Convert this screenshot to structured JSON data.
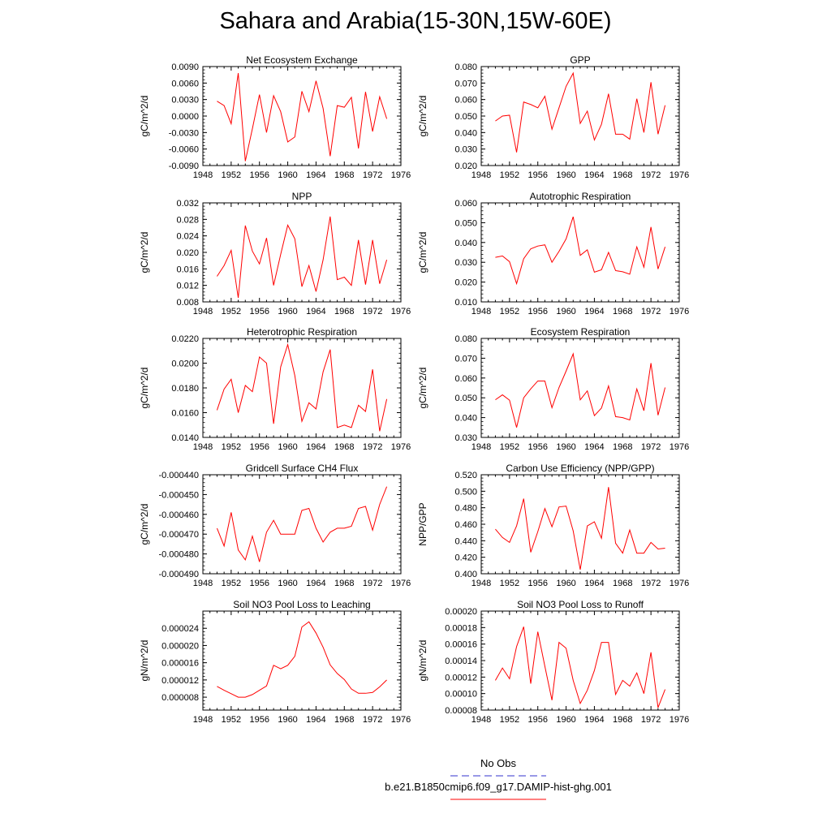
{
  "page_title": "Sahara and Arabia(15-30N,15W-60E)",
  "colors": {
    "model_line": "#ff0000",
    "obs_line": "#3333cc",
    "axes": "#000000"
  },
  "legend": {
    "items": [
      {
        "label": "No Obs",
        "style": "dashed",
        "color": "#3333cc"
      },
      {
        "label": "b.e21.B1850cmip6.f09_g17.DAMIP-hist-ghg.001",
        "style": "solid",
        "color": "#ff0000"
      }
    ]
  },
  "chart_data": [
    {
      "type": "line",
      "title": "Net Ecosystem Exchange",
      "ylabel": "gC/m^2/d",
      "xlim": [
        1948,
        1976
      ],
      "x_ticks": [
        "1948",
        "1952",
        "1956",
        "1960",
        "1964",
        "1968",
        "1972",
        "1976"
      ],
      "ylim": [
        -0.009,
        0.009
      ],
      "y_ticks": [
        "-0.0090",
        "-0.0060",
        "-0.0030",
        "0.0000",
        "0.0030",
        "0.0060",
        "0.0090"
      ],
      "x": [
        1950,
        1951,
        1952,
        1953,
        1954,
        1955,
        1956,
        1957,
        1958,
        1959,
        1960,
        1961,
        1962,
        1963,
        1964,
        1965,
        1966,
        1967,
        1968,
        1969,
        1970,
        1971,
        1972,
        1973,
        1974
      ],
      "series": [
        {
          "values": [
            0.0027,
            0.0019,
            -0.0014,
            0.0078,
            -0.0082,
            -0.0023,
            0.0039,
            -0.003,
            0.0037,
            0.0008,
            -0.0047,
            -0.0038,
            0.0045,
            0.0008,
            0.0064,
            0.0014,
            -0.0073,
            0.0019,
            0.0016,
            0.0034,
            -0.0059,
            0.0044,
            -0.0028,
            0.0035,
            -0.0005
          ]
        }
      ]
    },
    {
      "type": "line",
      "title": "GPP",
      "ylabel": "gC/m^2/d",
      "xlim": [
        1948,
        1976
      ],
      "x_ticks": [
        "1948",
        "1952",
        "1956",
        "1960",
        "1964",
        "1968",
        "1972",
        "1976"
      ],
      "ylim": [
        0.02,
        0.08
      ],
      "y_ticks": [
        "0.020",
        "0.030",
        "0.040",
        "0.050",
        "0.060",
        "0.070",
        "0.080"
      ],
      "x": [
        1950,
        1951,
        1952,
        1953,
        1954,
        1955,
        1956,
        1957,
        1958,
        1959,
        1960,
        1961,
        1962,
        1963,
        1964,
        1965,
        1966,
        1967,
        1968,
        1969,
        1970,
        1971,
        1972,
        1973,
        1974
      ],
      "series": [
        {
          "values": [
            0.047,
            0.05,
            0.0505,
            0.028,
            0.0585,
            0.057,
            0.055,
            0.062,
            0.042,
            0.055,
            0.068,
            0.076,
            0.0455,
            0.053,
            0.0355,
            0.045,
            0.0635,
            0.039,
            0.039,
            0.036,
            0.0605,
            0.04,
            0.0705,
            0.039,
            0.0565
          ]
        }
      ]
    },
    {
      "type": "line",
      "title": "NPP",
      "ylabel": "gC/m^2/d",
      "xlim": [
        1948,
        1976
      ],
      "x_ticks": [
        "1948",
        "1952",
        "1956",
        "1960",
        "1964",
        "1968",
        "1972",
        "1976"
      ],
      "ylim": [
        0.008,
        0.032
      ],
      "y_ticks": [
        "0.008",
        "0.012",
        "0.016",
        "0.020",
        "0.024",
        "0.028",
        "0.032"
      ],
      "x": [
        1950,
        1951,
        1952,
        1953,
        1954,
        1955,
        1956,
        1957,
        1958,
        1959,
        1960,
        1961,
        1962,
        1963,
        1964,
        1965,
        1966,
        1967,
        1968,
        1969,
        1970,
        1971,
        1972,
        1973,
        1974
      ],
      "series": [
        {
          "values": [
            0.0142,
            0.0168,
            0.0205,
            0.009,
            0.0265,
            0.0203,
            0.0172,
            0.0235,
            0.012,
            0.0195,
            0.0266,
            0.0233,
            0.0117,
            0.0168,
            0.0105,
            0.0182,
            0.0287,
            0.0134,
            0.014,
            0.012,
            0.023,
            0.0122,
            0.023,
            0.0124,
            0.0182
          ]
        }
      ]
    },
    {
      "type": "line",
      "title": "Autotrophic Respiration",
      "ylabel": "gC/m^2/d",
      "xlim": [
        1948,
        1976
      ],
      "x_ticks": [
        "1948",
        "1952",
        "1956",
        "1960",
        "1964",
        "1968",
        "1972",
        "1976"
      ],
      "ylim": [
        0.01,
        0.06
      ],
      "y_ticks": [
        "0.010",
        "0.020",
        "0.030",
        "0.040",
        "0.050",
        "0.060"
      ],
      "x": [
        1950,
        1951,
        1952,
        1953,
        1954,
        1955,
        1956,
        1957,
        1958,
        1959,
        1960,
        1961,
        1962,
        1963,
        1964,
        1965,
        1966,
        1967,
        1968,
        1969,
        1970,
        1971,
        1972,
        1973,
        1974
      ],
      "series": [
        {
          "values": [
            0.0325,
            0.0332,
            0.0303,
            0.0192,
            0.0318,
            0.0368,
            0.0382,
            0.0388,
            0.03,
            0.0355,
            0.0418,
            0.053,
            0.0335,
            0.0363,
            0.025,
            0.0262,
            0.035,
            0.0258,
            0.0252,
            0.024,
            0.0378,
            0.0275,
            0.0478,
            0.0266,
            0.0378
          ]
        }
      ]
    },
    {
      "type": "line",
      "title": "Heterotrophic Respiration",
      "ylabel": "gC/m^2/d",
      "xlim": [
        1948,
        1976
      ],
      "x_ticks": [
        "1948",
        "1952",
        "1956",
        "1960",
        "1964",
        "1968",
        "1972",
        "1976"
      ],
      "ylim": [
        0.014,
        0.022
      ],
      "y_ticks": [
        "0.0140",
        "0.0160",
        "0.0180",
        "0.0200",
        "0.0220"
      ],
      "x": [
        1950,
        1951,
        1952,
        1953,
        1954,
        1955,
        1956,
        1957,
        1958,
        1959,
        1960,
        1961,
        1962,
        1963,
        1964,
        1965,
        1966,
        1967,
        1968,
        1969,
        1970,
        1971,
        1972,
        1973,
        1974
      ],
      "series": [
        {
          "values": [
            0.0162,
            0.0179,
            0.0187,
            0.016,
            0.0182,
            0.0177,
            0.0205,
            0.02,
            0.0151,
            0.0197,
            0.0215,
            0.019,
            0.0153,
            0.0168,
            0.0163,
            0.0193,
            0.0211,
            0.0148,
            0.015,
            0.0148,
            0.0166,
            0.0161,
            0.0195,
            0.0145,
            0.0171
          ]
        }
      ]
    },
    {
      "type": "line",
      "title": "Ecosystem Respiration",
      "ylabel": "gC/m^2/d",
      "xlim": [
        1948,
        1976
      ],
      "x_ticks": [
        "1948",
        "1952",
        "1956",
        "1960",
        "1964",
        "1968",
        "1972",
        "1976"
      ],
      "ylim": [
        0.03,
        0.08
      ],
      "y_ticks": [
        "0.030",
        "0.040",
        "0.050",
        "0.060",
        "0.070",
        "0.080"
      ],
      "x": [
        1950,
        1951,
        1952,
        1953,
        1954,
        1955,
        1956,
        1957,
        1958,
        1959,
        1960,
        1961,
        1962,
        1963,
        1964,
        1965,
        1966,
        1967,
        1968,
        1969,
        1970,
        1971,
        1972,
        1973,
        1974
      ],
      "series": [
        {
          "values": [
            0.049,
            0.0515,
            0.0488,
            0.035,
            0.05,
            0.0545,
            0.0585,
            0.0585,
            0.045,
            0.0552,
            0.0635,
            0.0722,
            0.049,
            0.0535,
            0.041,
            0.0448,
            0.056,
            0.0405,
            0.04,
            0.0388,
            0.0545,
            0.0435,
            0.0675,
            0.0412,
            0.0552
          ]
        }
      ]
    },
    {
      "type": "line",
      "title": "Gridcell Surface CH4 Flux",
      "ylabel": "gC/m^2/d",
      "xlim": [
        1948,
        1976
      ],
      "x_ticks": [
        "1948",
        "1952",
        "1956",
        "1960",
        "1964",
        "1968",
        "1972",
        "1976"
      ],
      "ylim": [
        -0.00049,
        -0.00044
      ],
      "y_ticks": [
        "-0.000490",
        "-0.000480",
        "-0.000470",
        "-0.000460",
        "-0.000450",
        "-0.000440"
      ],
      "x": [
        1950,
        1951,
        1952,
        1953,
        1954,
        1955,
        1956,
        1957,
        1958,
        1959,
        1960,
        1961,
        1962,
        1963,
        1964,
        1965,
        1966,
        1967,
        1968,
        1969,
        1970,
        1971,
        1972,
        1973,
        1974
      ],
      "series": [
        {
          "values": [
            -0.000467,
            -0.000476,
            -0.000459,
            -0.000478,
            -0.000483,
            -0.000471,
            -0.000484,
            -0.000469,
            -0.000463,
            -0.00047,
            -0.00047,
            -0.00047,
            -0.000458,
            -0.000457,
            -0.000467,
            -0.000474,
            -0.000469,
            -0.000467,
            -0.000467,
            -0.000466,
            -0.000457,
            -0.000456,
            -0.000468,
            -0.000455,
            -0.000446
          ]
        }
      ]
    },
    {
      "type": "line",
      "title": "Carbon Use Efficiency (NPP/GPP)",
      "ylabel": "NPP/GPP",
      "xlim": [
        1948,
        1976
      ],
      "x_ticks": [
        "1948",
        "1952",
        "1956",
        "1960",
        "1964",
        "1968",
        "1972",
        "1976"
      ],
      "ylim": [
        0.4,
        0.52
      ],
      "y_ticks": [
        "0.400",
        "0.420",
        "0.440",
        "0.460",
        "0.480",
        "0.500",
        "0.520"
      ],
      "x": [
        1950,
        1951,
        1952,
        1953,
        1954,
        1955,
        1956,
        1957,
        1958,
        1959,
        1960,
        1961,
        1962,
        1963,
        1964,
        1965,
        1966,
        1967,
        1968,
        1969,
        1970,
        1971,
        1972,
        1973,
        1974
      ],
      "series": [
        {
          "values": [
            0.454,
            0.444,
            0.438,
            0.458,
            0.491,
            0.426,
            0.451,
            0.479,
            0.457,
            0.481,
            0.482,
            0.452,
            0.405,
            0.458,
            0.463,
            0.443,
            0.505,
            0.437,
            0.425,
            0.453,
            0.425,
            0.425,
            0.438,
            0.43,
            0.431
          ]
        }
      ]
    },
    {
      "type": "line",
      "title": "Soil NO3 Pool Loss to Leaching",
      "ylabel": "gN/m^2/d",
      "xlim": [
        1948,
        1976
      ],
      "x_ticks": [
        "1948",
        "1952",
        "1956",
        "1960",
        "1964",
        "1968",
        "1972",
        "1976"
      ],
      "ylim": [
        5e-06,
        2.8e-05
      ],
      "y_ticks": [
        "0.000008",
        "0.000012",
        "0.000016",
        "0.000020",
        "0.000024"
      ],
      "y_tick_values": [
        8e-06,
        1.2e-05,
        1.6e-05,
        2e-05,
        2.4e-05
      ],
      "x": [
        1950,
        1951,
        1952,
        1953,
        1954,
        1955,
        1956,
        1957,
        1958,
        1959,
        1960,
        1961,
        1962,
        1963,
        1964,
        1965,
        1966,
        1967,
        1968,
        1969,
        1970,
        1971,
        1972,
        1973,
        1974
      ],
      "series": [
        {
          "values": [
            1.05e-05,
            9.6e-06,
            8.8e-06,
            8e-06,
            8e-06,
            8.6e-06,
            9.6e-06,
            1.06e-05,
            1.54e-05,
            1.46e-05,
            1.54e-05,
            1.75e-05,
            2.43e-05,
            2.55e-05,
            2.29e-05,
            1.96e-05,
            1.55e-05,
            1.35e-05,
            1.21e-05,
            9.9e-06,
            8.9e-06,
            8.9e-06,
            9.1e-06,
            1.04e-05,
            1.2e-05
          ]
        }
      ]
    },
    {
      "type": "line",
      "title": "Soil NO3 Pool Loss to Runoff",
      "ylabel": "gN/m^2/d",
      "xlim": [
        1948,
        1976
      ],
      "x_ticks": [
        "1948",
        "1952",
        "1956",
        "1960",
        "1964",
        "1968",
        "1972",
        "1976"
      ],
      "ylim": [
        8e-05,
        0.0002
      ],
      "y_ticks": [
        "0.00008",
        "0.00010",
        "0.00012",
        "0.00014",
        "0.00016",
        "0.00018",
        "0.00020"
      ],
      "x": [
        1950,
        1951,
        1952,
        1953,
        1954,
        1955,
        1956,
        1957,
        1958,
        1959,
        1960,
        1961,
        1962,
        1963,
        1964,
        1965,
        1966,
        1967,
        1968,
        1969,
        1970,
        1971,
        1972,
        1973,
        1974
      ],
      "series": [
        {
          "values": [
            0.000116,
            0.000131,
            0.000118,
            0.000157,
            0.000181,
            0.000112,
            0.000175,
            0.000133,
            9.2e-05,
            0.000162,
            0.000155,
            0.000116,
            8.8e-05,
            0.000104,
            0.000128,
            0.000162,
            0.000162,
            9.9e-05,
            0.000116,
            0.000109,
            0.000125,
            0.0001,
            0.00015,
            8.3e-05,
            0.000105
          ]
        }
      ]
    }
  ]
}
